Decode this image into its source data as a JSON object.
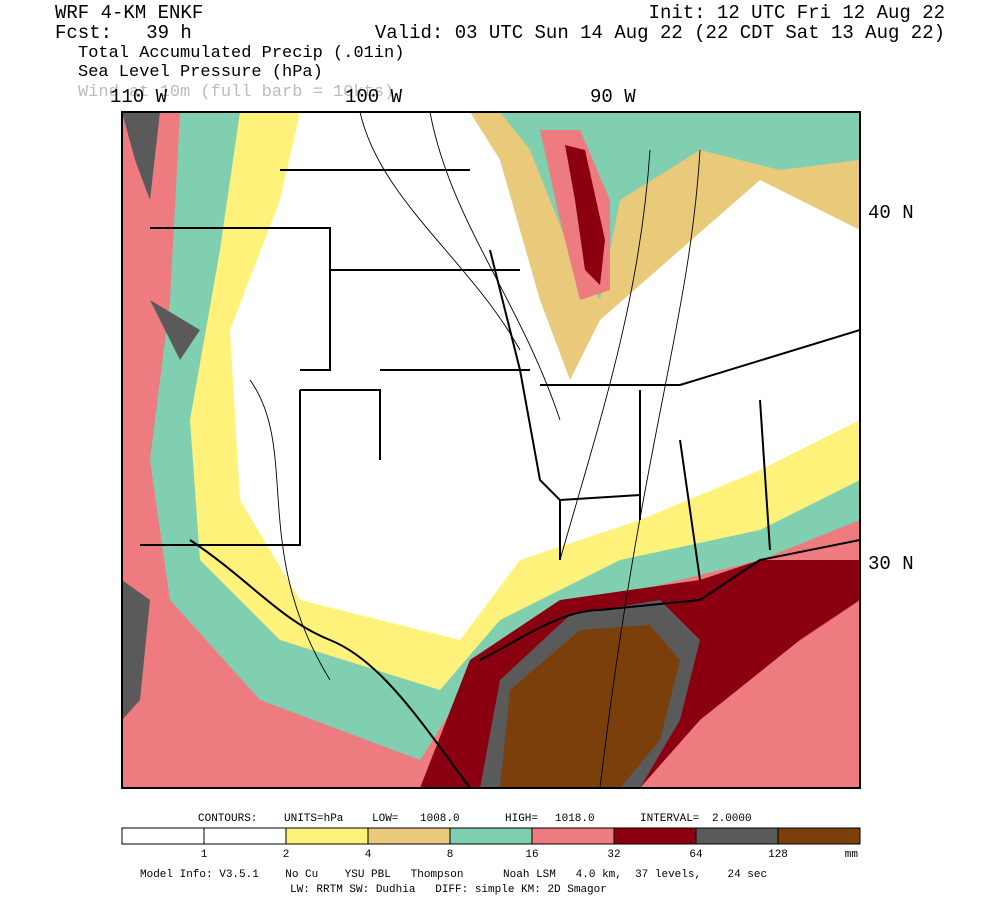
{
  "header": {
    "model": "WRF 4-KM ENKF",
    "fcst": "Fcst:   39 h",
    "init": "Init: 12 UTC Fri 12 Aug 22",
    "valid": "Valid: 03 UTC Sun 14 Aug 22 (22 CDT Sat 13 Aug 22)",
    "fields": [
      "Total Accumulated Precip (.01in)",
      "Sea Level Pressure (hPa)",
      "Wind at 10m (full barb = 10kts)"
    ]
  },
  "map": {
    "lon_labels": [
      "110 W",
      "100 W",
      "90 W"
    ],
    "lat_labels": [
      "40 N",
      "30 N"
    ]
  },
  "contours": [
    "CONTOURS:",
    "UNITS=hPa",
    "LOW=",
    "1008.0",
    "HIGH=",
    "1018.0",
    "INTERVAL=",
    "2.0000"
  ],
  "colorbar": {
    "colors": [
      "#ffffff",
      "#fff27a",
      "#e9c97a",
      "#7fcfb0",
      "#ee7b80",
      "#8b0010",
      "#5a5a5a",
      "#7a3f0a"
    ],
    "labels": [
      "1",
      "2",
      "4",
      "8",
      "16",
      "32",
      "64",
      "128"
    ],
    "unit": "mm"
  },
  "footer": [
    "Model Info: V3.5.1    No Cu    YSU PBL   Thompson      Noah LSM   4.0 km,  37 levels,    24 sec",
    "LW: RRTM SW: Dudhia   DIFF: simple KM: 2D Smagor"
  ]
}
